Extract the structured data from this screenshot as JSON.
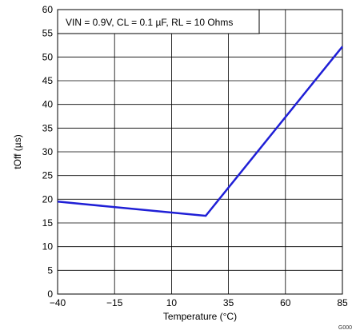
{
  "chart_data": {
    "type": "line",
    "xlabel": "Temperature (°C)",
    "ylabel": "tOff (µs)",
    "xlim": [
      -40,
      85
    ],
    "ylim": [
      0,
      60
    ],
    "xticks": [
      -40,
      -15,
      10,
      35,
      60,
      85
    ],
    "xtick_labels": [
      "−40",
      "−15",
      "10",
      "35",
      "60",
      "85"
    ],
    "yticks": [
      0,
      5,
      10,
      15,
      20,
      25,
      30,
      35,
      40,
      45,
      50,
      55,
      60
    ],
    "grid": true,
    "annotation": "VIN = 0.9V, CL = 0.1 µF, RL = 10 Ohms",
    "figure_id": "G000",
    "series": [
      {
        "color": "#1f1fd6",
        "x": [
          -40,
          25,
          85
        ],
        "y": [
          19.5,
          16.5,
          52.2
        ]
      }
    ]
  }
}
